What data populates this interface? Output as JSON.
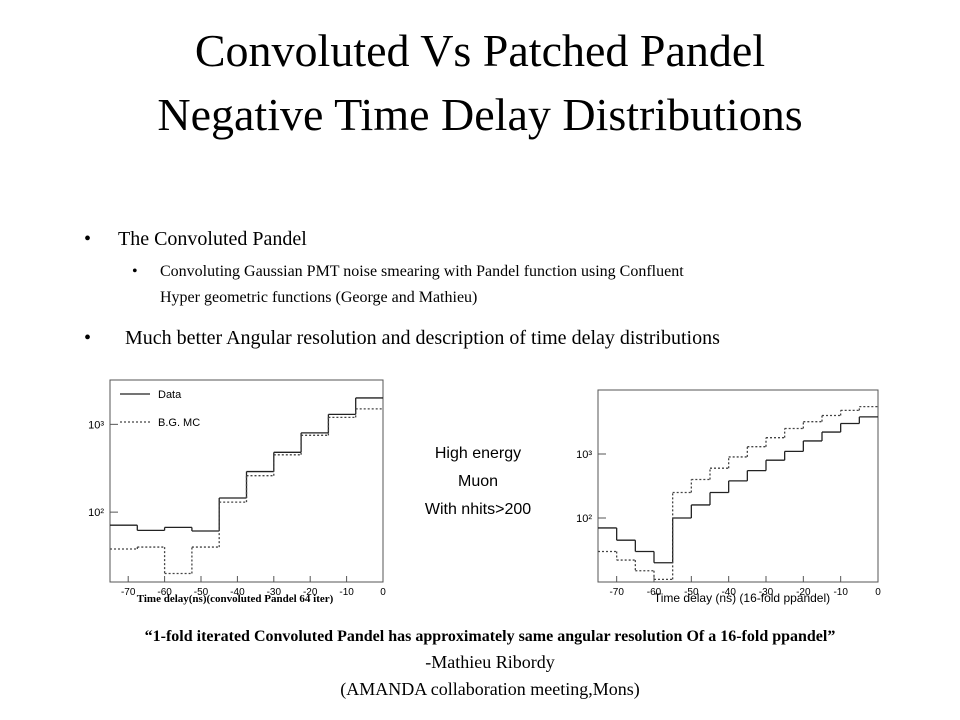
{
  "title": [
    "Convoluted Vs Patched Pandel",
    "Negative Time Delay Distributions"
  ],
  "bullets": [
    "The Convoluted Pandel",
    "Much better Angular resolution and description of time delay distributions"
  ],
  "sub_bullet": [
    "Convoluting Gaussian PMT noise smearing with Pandel function using Confluent",
    "Hyper geometric functions (George and Mathieu)"
  ],
  "center_note": [
    "High energy",
    "Muon",
    "With nhits>200"
  ],
  "quote": {
    "text": "“1-fold iterated Convoluted Pandel has approximately same angular resolution Of a 16-fold ppandel”",
    "author": "-Mathieu Ribordy",
    "source": "(AMANDA collaboration meeting,Mons)"
  },
  "chart_data": [
    {
      "type": "histogram",
      "xlabel": "Time delay(ns)(convoluted Pandel 64 iter)",
      "log_y": true,
      "legend": "upper left",
      "bins": [
        -75,
        -67.5,
        -60,
        -52.5,
        -45,
        -37.5,
        -30,
        -22.5,
        -15,
        -7.5,
        0
      ],
      "series": [
        {
          "name": "Data",
          "style": "solid",
          "color": "#222222",
          "values": [
            71,
            62,
            67,
            61,
            145,
            290,
            480,
            800,
            1300,
            2000
          ]
        },
        {
          "name": "B.G. MC",
          "style": "dotted",
          "color": "#444444",
          "values": [
            38,
            40,
            20,
            40,
            130,
            260,
            450,
            750,
            1200,
            1500
          ]
        }
      ],
      "xlim": [
        -75,
        0
      ],
      "xticks": [
        -70,
        -60,
        -50,
        -40,
        -30,
        -20,
        -10,
        0
      ],
      "ylim": [
        16,
        3200
      ],
      "yticks": [
        {
          "value": 100,
          "label": "10²"
        },
        {
          "value": 1000,
          "label": "10³"
        }
      ]
    },
    {
      "type": "histogram",
      "xlabel": "Time delay (ns) (16-fold ppandel)",
      "log_y": true,
      "bins": [
        -75,
        -70,
        -65,
        -60,
        -55,
        -50,
        -45,
        -40,
        -35,
        -30,
        -25,
        -20,
        -15,
        -10,
        -5,
        0
      ],
      "series": [
        {
          "style": "solid",
          "color": "#222222",
          "values": [
            70,
            45,
            30,
            20,
            100,
            160,
            250,
            380,
            550,
            800,
            1100,
            1600,
            2200,
            3000,
            3800
          ]
        },
        {
          "style": "dotted",
          "color": "#444444",
          "values": [
            30,
            22,
            15,
            11,
            250,
            400,
            600,
            900,
            1300,
            1800,
            2500,
            3200,
            4000,
            4800,
            5500
          ]
        }
      ],
      "xlim": [
        -75,
        0
      ],
      "xticks": [
        -70,
        -60,
        -50,
        -40,
        -30,
        -20,
        -10,
        0
      ],
      "ylim": [
        10,
        10000
      ],
      "yticks": [
        {
          "value": 100,
          "label": "10²"
        },
        {
          "value": 1000,
          "label": "10³"
        }
      ]
    }
  ]
}
